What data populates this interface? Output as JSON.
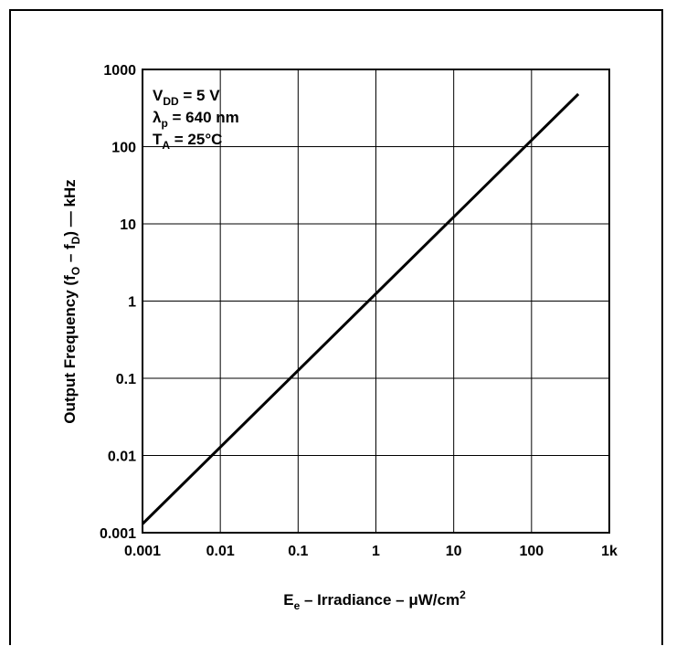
{
  "chart_data": {
    "type": "line",
    "x_scale": "log",
    "y_scale": "log",
    "xlim": [
      0.001,
      1000
    ],
    "ylim": [
      0.001,
      1000
    ],
    "x_ticks": [
      "0.001",
      "0.01",
      "0.1",
      "1",
      "10",
      "100",
      "1k"
    ],
    "y_ticks": [
      "0.001",
      "0.01",
      "0.1",
      "1",
      "10",
      "100",
      "1000"
    ],
    "grid": true,
    "xlabel": {
      "main": "E",
      "sub": "e",
      "rest": " – Irradiance – μW/cm",
      "sup": "2"
    },
    "ylabel": {
      "a": "Output Frequency (f",
      "sub1": "O",
      "b": " – f",
      "sub2": "D",
      "c": ") — kHz"
    },
    "conditions": [
      {
        "main": "V",
        "sub": "DD",
        "rest": " = 5 V"
      },
      {
        "main": "λ",
        "sub": "p",
        "rest": " = 640 nm"
      },
      {
        "main": "T",
        "sub": "A",
        "rest": " = 25°C"
      }
    ],
    "series": [
      {
        "x": [
          0.001,
          400
        ],
        "y": [
          0.0013,
          480
        ]
      }
    ],
    "line_color": "#000000",
    "grid_color": "#000000"
  }
}
